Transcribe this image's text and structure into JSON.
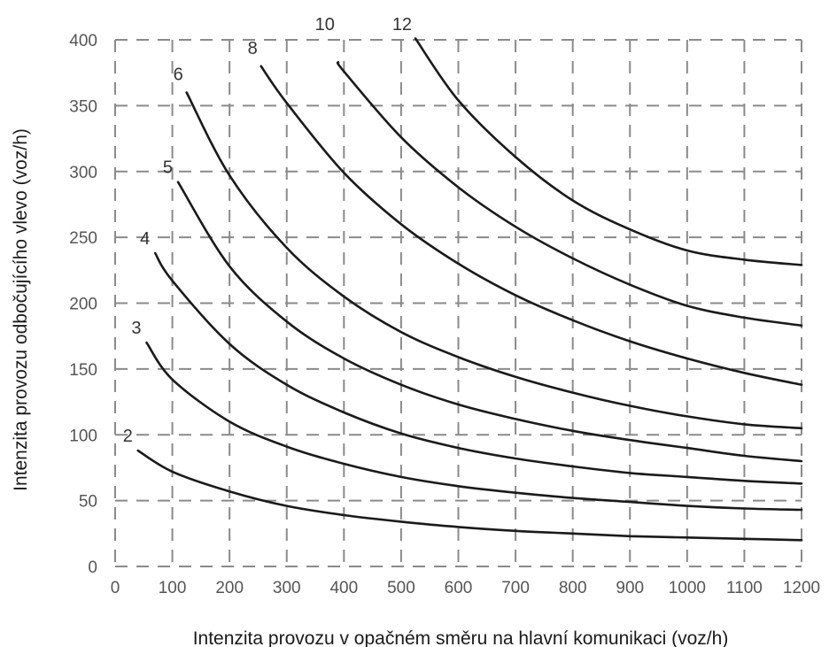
{
  "chart_data": {
    "type": "line",
    "title": "",
    "xlabel": "Intenzita provozu v opačném směru na hlavní komunikaci (voz/h)",
    "ylabel": "Intenzita provozu odbočujícího  vlevo (voz/h)",
    "xlim": [
      0,
      1200
    ],
    "ylim": [
      0,
      400
    ],
    "xticks": [
      "0",
      "100",
      "200",
      "300",
      "400",
      "500",
      "600",
      "700",
      "800",
      "900",
      "1000",
      "1100",
      "1200"
    ],
    "yticks": [
      "0",
      "50",
      "100",
      "150",
      "200",
      "250",
      "300",
      "350",
      "400"
    ],
    "grid": true,
    "legend": "none",
    "series": [
      {
        "name": "2",
        "x": [
          40,
          100,
          200,
          300,
          400,
          500,
          600,
          700,
          800,
          900,
          1000,
          1100,
          1200
        ],
        "y": [
          88,
          72,
          57,
          46,
          39,
          34,
          30,
          27,
          25,
          23,
          22,
          21,
          20
        ]
      },
      {
        "name": "3",
        "x": [
          55,
          100,
          200,
          300,
          400,
          500,
          600,
          700,
          800,
          900,
          1000,
          1100,
          1200
        ],
        "y": [
          170,
          142,
          110,
          91,
          78,
          68,
          61,
          56,
          52,
          49,
          46,
          44,
          43
        ]
      },
      {
        "name": "4",
        "x": [
          70,
          100,
          200,
          300,
          400,
          500,
          600,
          700,
          800,
          900,
          1000,
          1100,
          1200
        ],
        "y": [
          238,
          217,
          169,
          138,
          117,
          101,
          90,
          82,
          76,
          71,
          68,
          65,
          63
        ]
      },
      {
        "name": "5",
        "x": [
          110,
          200,
          300,
          400,
          500,
          600,
          700,
          800,
          900,
          1000,
          1100,
          1200
        ],
        "y": [
          292,
          228,
          186,
          158,
          138,
          123,
          112,
          103,
          96,
          90,
          84,
          80
        ]
      },
      {
        "name": "6",
        "x": [
          125,
          200,
          300,
          400,
          500,
          600,
          700,
          800,
          900,
          1000,
          1100,
          1200
        ],
        "y": [
          360,
          297,
          242,
          205,
          178,
          159,
          144,
          132,
          122,
          114,
          108,
          105
        ]
      },
      {
        "name": "8",
        "x": [
          255,
          300,
          400,
          500,
          600,
          700,
          800,
          900,
          1000,
          1100,
          1200
        ],
        "y": [
          380,
          352,
          299,
          260,
          230,
          206,
          187,
          171,
          158,
          147,
          138
        ]
      },
      {
        "name": "10",
        "x": [
          390,
          400,
          500,
          600,
          700,
          800,
          900,
          1000,
          1100,
          1200
        ],
        "y": [
          383,
          376,
          326,
          288,
          258,
          234,
          214,
          198,
          189,
          183
        ]
      },
      {
        "name": "12",
        "x": [
          525,
          600,
          700,
          800,
          900,
          1000,
          1100,
          1200
        ],
        "y": [
          401,
          354,
          311,
          278,
          256,
          240,
          233,
          229
        ]
      }
    ]
  }
}
